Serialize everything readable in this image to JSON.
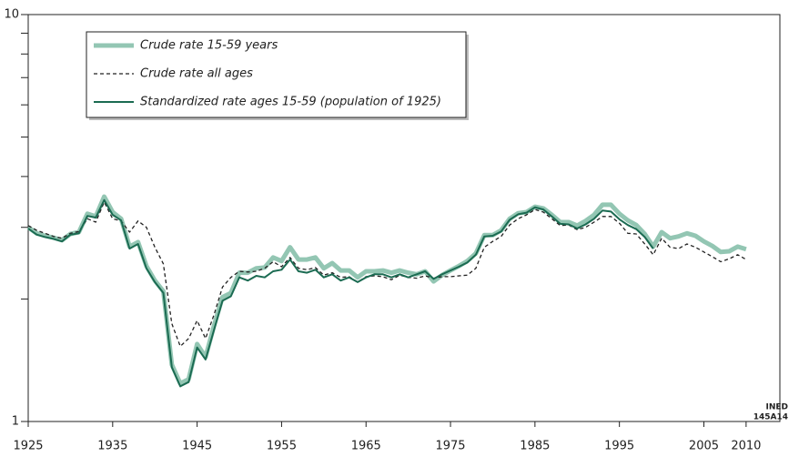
{
  "chart_data": {
    "type": "line",
    "x": [
      1925,
      1926,
      1927,
      1928,
      1929,
      1930,
      1931,
      1932,
      1933,
      1934,
      1935,
      1936,
      1937,
      1938,
      1939,
      1940,
      1941,
      1942,
      1943,
      1944,
      1945,
      1946,
      1947,
      1948,
      1949,
      1950,
      1951,
      1952,
      1953,
      1954,
      1955,
      1956,
      1957,
      1958,
      1959,
      1960,
      1961,
      1962,
      1963,
      1964,
      1965,
      1966,
      1967,
      1968,
      1969,
      1970,
      1971,
      1972,
      1973,
      1974,
      1975,
      1976,
      1977,
      1978,
      1979,
      1980,
      1981,
      1982,
      1983,
      1984,
      1985,
      1986,
      1987,
      1988,
      1989,
      1990,
      1991,
      1992,
      1993,
      1994,
      1995,
      1996,
      1997,
      1998,
      1999,
      2000,
      2001,
      2002,
      2003,
      2004,
      2005,
      2006,
      2007,
      2008,
      2009,
      2010
    ],
    "series": [
      {
        "name": "Crude rate 15-59 years",
        "color": "#93c6b3",
        "style": "thick",
        "values": [
          3.0,
          2.9,
          2.86,
          2.83,
          2.79,
          2.89,
          2.92,
          3.24,
          3.19,
          3.57,
          3.27,
          3.15,
          2.69,
          2.76,
          2.41,
          2.22,
          2.09,
          1.38,
          1.24,
          1.27,
          1.55,
          1.44,
          1.72,
          2.02,
          2.07,
          2.32,
          2.32,
          2.38,
          2.39,
          2.53,
          2.48,
          2.68,
          2.5,
          2.5,
          2.53,
          2.38,
          2.45,
          2.35,
          2.35,
          2.26,
          2.34,
          2.34,
          2.35,
          2.32,
          2.35,
          2.32,
          2.3,
          2.34,
          2.21,
          2.29,
          2.35,
          2.41,
          2.48,
          2.59,
          2.87,
          2.87,
          2.95,
          3.15,
          3.25,
          3.27,
          3.37,
          3.34,
          3.22,
          3.09,
          3.09,
          3.03,
          3.11,
          3.22,
          3.41,
          3.41,
          3.24,
          3.12,
          3.04,
          2.89,
          2.69,
          2.92,
          2.82,
          2.85,
          2.9,
          2.86,
          2.77,
          2.7,
          2.61,
          2.62,
          2.69,
          2.65
        ]
      },
      {
        "name": "Crude rate all ages",
        "color": "#222222",
        "style": "dashed",
        "values": [
          3.03,
          2.95,
          2.9,
          2.85,
          2.82,
          2.9,
          2.93,
          3.15,
          3.09,
          3.46,
          3.15,
          3.11,
          2.92,
          3.11,
          3.0,
          2.68,
          2.44,
          1.74,
          1.53,
          1.6,
          1.77,
          1.6,
          1.83,
          2.14,
          2.26,
          2.34,
          2.33,
          2.34,
          2.38,
          2.47,
          2.4,
          2.53,
          2.38,
          2.36,
          2.39,
          2.29,
          2.32,
          2.26,
          2.27,
          2.2,
          2.27,
          2.28,
          2.27,
          2.23,
          2.29,
          2.26,
          2.25,
          2.28,
          2.25,
          2.27,
          2.27,
          2.28,
          2.29,
          2.38,
          2.68,
          2.77,
          2.85,
          3.04,
          3.15,
          3.22,
          3.32,
          3.27,
          3.15,
          3.03,
          3.04,
          2.96,
          3.0,
          3.09,
          3.19,
          3.19,
          3.07,
          2.9,
          2.89,
          2.73,
          2.57,
          2.82,
          2.68,
          2.66,
          2.73,
          2.68,
          2.61,
          2.54,
          2.47,
          2.51,
          2.57,
          2.5
        ]
      },
      {
        "name": "Standardized rate ages 15-59 (population of 1925)",
        "color": "#1b6b52",
        "style": "solid",
        "values": [
          2.98,
          2.88,
          2.84,
          2.81,
          2.77,
          2.88,
          2.9,
          3.2,
          3.17,
          3.5,
          3.22,
          3.12,
          2.66,
          2.73,
          2.38,
          2.2,
          2.07,
          1.36,
          1.22,
          1.25,
          1.52,
          1.42,
          1.68,
          1.98,
          2.03,
          2.26,
          2.22,
          2.28,
          2.26,
          2.34,
          2.36,
          2.5,
          2.34,
          2.32,
          2.36,
          2.26,
          2.3,
          2.22,
          2.26,
          2.2,
          2.26,
          2.3,
          2.3,
          2.26,
          2.3,
          2.26,
          2.3,
          2.34,
          2.24,
          2.3,
          2.35,
          2.4,
          2.46,
          2.57,
          2.85,
          2.86,
          2.93,
          3.13,
          3.23,
          3.26,
          3.36,
          3.32,
          3.19,
          3.06,
          3.05,
          2.98,
          3.05,
          3.15,
          3.3,
          3.28,
          3.14,
          3.04,
          2.97,
          2.84,
          2.66,
          null,
          null,
          null,
          null,
          null,
          null,
          null,
          null,
          null,
          null,
          null
        ]
      }
    ],
    "xlim": [
      1925,
      2014
    ],
    "xticks": [
      1925,
      1935,
      1945,
      1955,
      1965,
      1975,
      1985,
      1995,
      2005,
      2010
    ],
    "ylim": [
      1,
      10
    ],
    "ylog": true,
    "yticks": [
      1,
      10
    ],
    "yminor_ticks": [
      2,
      3,
      4,
      5,
      6,
      7,
      8,
      9
    ],
    "legend": "upper left",
    "annotation": [
      "INED",
      "145A14"
    ]
  }
}
